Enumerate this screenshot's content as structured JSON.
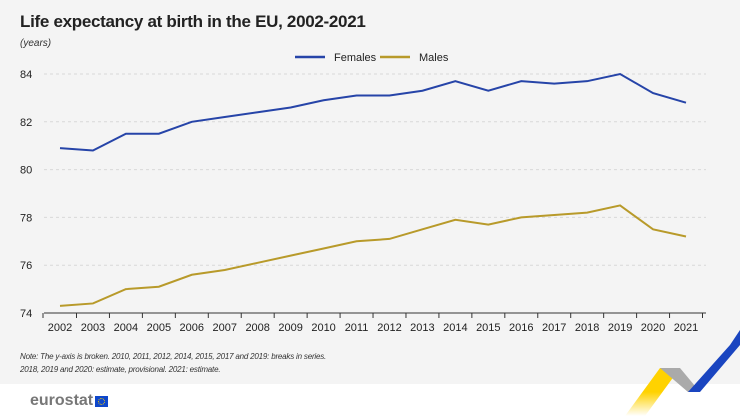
{
  "chart_data": {
    "type": "line",
    "title": "Life expectancy at birth in the EU, 2002-2021",
    "ylabel": "(years)",
    "x": [
      2002,
      2003,
      2004,
      2005,
      2006,
      2007,
      2008,
      2009,
      2010,
      2011,
      2012,
      2013,
      2014,
      2015,
      2016,
      2017,
      2018,
      2019,
      2020,
      2021
    ],
    "ylim": [
      74,
      84
    ],
    "yticks": [
      74,
      76,
      78,
      80,
      82,
      84
    ],
    "grid": true,
    "legend_placement": "top-center",
    "series": [
      {
        "name": "Females",
        "color": "#2644a8",
        "values": [
          80.9,
          80.8,
          81.5,
          81.5,
          82.0,
          82.2,
          82.4,
          82.6,
          82.9,
          83.1,
          83.1,
          83.3,
          83.7,
          83.3,
          83.7,
          83.6,
          83.7,
          84.0,
          83.2,
          82.8
        ]
      },
      {
        "name": "Males",
        "color": "#b89a2a",
        "values": [
          74.3,
          74.4,
          75.0,
          75.1,
          75.6,
          75.8,
          76.1,
          76.4,
          76.7,
          77.0,
          77.1,
          77.5,
          77.9,
          77.7,
          78.0,
          78.1,
          78.2,
          78.5,
          77.5,
          77.2
        ]
      }
    ],
    "note": [
      "Note: The y-axis is broken.  2010, 2011, 2012, 2014, 2015, 2017 and 2019: breaks in series.",
      "2018, 2019 and 2020: estimate, provisional. 2021: estimate."
    ]
  },
  "brand": {
    "logo_text": "eurostat"
  }
}
